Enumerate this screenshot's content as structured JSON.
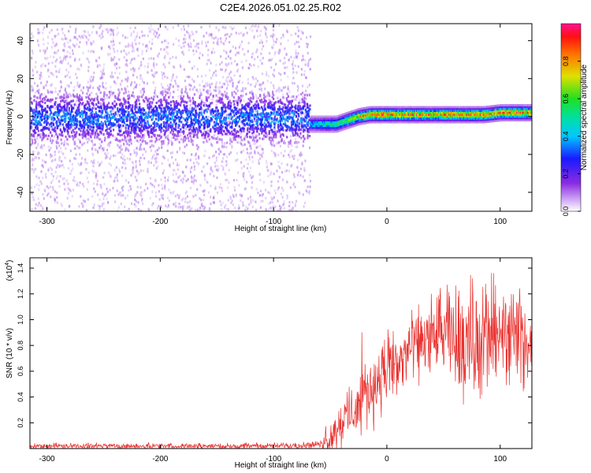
{
  "title": "C2E4.2026.051.02.25.R02",
  "chart_data": [
    {
      "type": "heatmap",
      "xlabel": "Height of straight line (km)",
      "ylabel": "Frequency (Hz)",
      "xlim": [
        -315,
        128
      ],
      "ylim": [
        -50,
        49
      ],
      "xticks": [
        -300,
        -200,
        -100,
        0,
        100
      ],
      "yticks": [
        -40,
        -20,
        0,
        20,
        40
      ],
      "colorbar": {
        "label": "Normalized spectral amplitude",
        "range": [
          0,
          1
        ],
        "ticks": [
          0.0,
          0.2,
          0.4,
          0.6,
          0.8
        ]
      },
      "description_points": {
        "noise_region_x": [
          -315,
          -68
        ],
        "signal_region_x": [
          -68,
          128
        ],
        "signal_track": [
          {
            "x": -68,
            "y": -4,
            "amp": 0.35
          },
          {
            "x": -55,
            "y": -4,
            "amp": 0.45
          },
          {
            "x": -45,
            "y": -4,
            "amp": 0.5
          },
          {
            "x": -35,
            "y": -2,
            "amp": 0.6
          },
          {
            "x": -25,
            "y": 0,
            "amp": 0.7
          },
          {
            "x": -15,
            "y": 1,
            "amp": 0.75
          },
          {
            "x": -5,
            "y": 1,
            "amp": 0.85
          },
          {
            "x": 10,
            "y": 1,
            "amp": 0.7
          },
          {
            "x": 25,
            "y": 1,
            "amp": 0.8
          },
          {
            "x": 40,
            "y": 1,
            "amp": 0.7
          },
          {
            "x": 55,
            "y": 1,
            "amp": 0.8
          },
          {
            "x": 70,
            "y": 1,
            "amp": 0.75
          },
          {
            "x": 85,
            "y": 1,
            "amp": 0.8
          },
          {
            "x": 100,
            "y": 2,
            "amp": 0.75
          },
          {
            "x": 115,
            "y": 2,
            "amp": 0.8
          },
          {
            "x": 128,
            "y": 2,
            "amp": 0.7
          }
        ]
      }
    },
    {
      "type": "line",
      "xlabel": "Height of straight line (km)",
      "ylabel": "SNR (10 * v/v)",
      "yscale_label": "(x10",
      "yscale_exp": "4",
      "xlim": [
        -315,
        128
      ],
      "ylim": [
        0.0,
        1.48
      ],
      "xticks": [
        -300,
        -200,
        -100,
        0,
        100
      ],
      "yticks": [
        0.2,
        0.4,
        0.6,
        0.8,
        1.0,
        1.2,
        1.4
      ],
      "color": "#e8322f",
      "envelope": [
        {
          "x": -315,
          "mean": 0.02,
          "spread": 0.015
        },
        {
          "x": -100,
          "mean": 0.02,
          "spread": 0.015
        },
        {
          "x": -60,
          "mean": 0.03,
          "spread": 0.02
        },
        {
          "x": -50,
          "mean": 0.08,
          "spread": 0.08
        },
        {
          "x": -40,
          "mean": 0.2,
          "spread": 0.12
        },
        {
          "x": -30,
          "mean": 0.3,
          "spread": 0.15
        },
        {
          "x": -20,
          "mean": 0.4,
          "spread": 0.2
        },
        {
          "x": -10,
          "mean": 0.5,
          "spread": 0.2
        },
        {
          "x": 0,
          "mean": 0.6,
          "spread": 0.2
        },
        {
          "x": 10,
          "mean": 0.65,
          "spread": 0.2
        },
        {
          "x": 20,
          "mean": 0.75,
          "spread": 0.2
        },
        {
          "x": 30,
          "mean": 0.82,
          "spread": 0.22
        },
        {
          "x": 40,
          "mean": 0.88,
          "spread": 0.22
        },
        {
          "x": 50,
          "mean": 0.88,
          "spread": 0.25
        },
        {
          "x": 60,
          "mean": 0.85,
          "spread": 0.28
        },
        {
          "x": 70,
          "mean": 0.85,
          "spread": 0.3
        },
        {
          "x": 80,
          "mean": 0.85,
          "spread": 0.32
        },
        {
          "x": 90,
          "mean": 0.85,
          "spread": 0.35
        },
        {
          "x": 100,
          "mean": 0.85,
          "spread": 0.3
        },
        {
          "x": 110,
          "mean": 0.85,
          "spread": 0.25
        },
        {
          "x": 128,
          "mean": 0.82,
          "spread": 0.2
        }
      ]
    }
  ]
}
